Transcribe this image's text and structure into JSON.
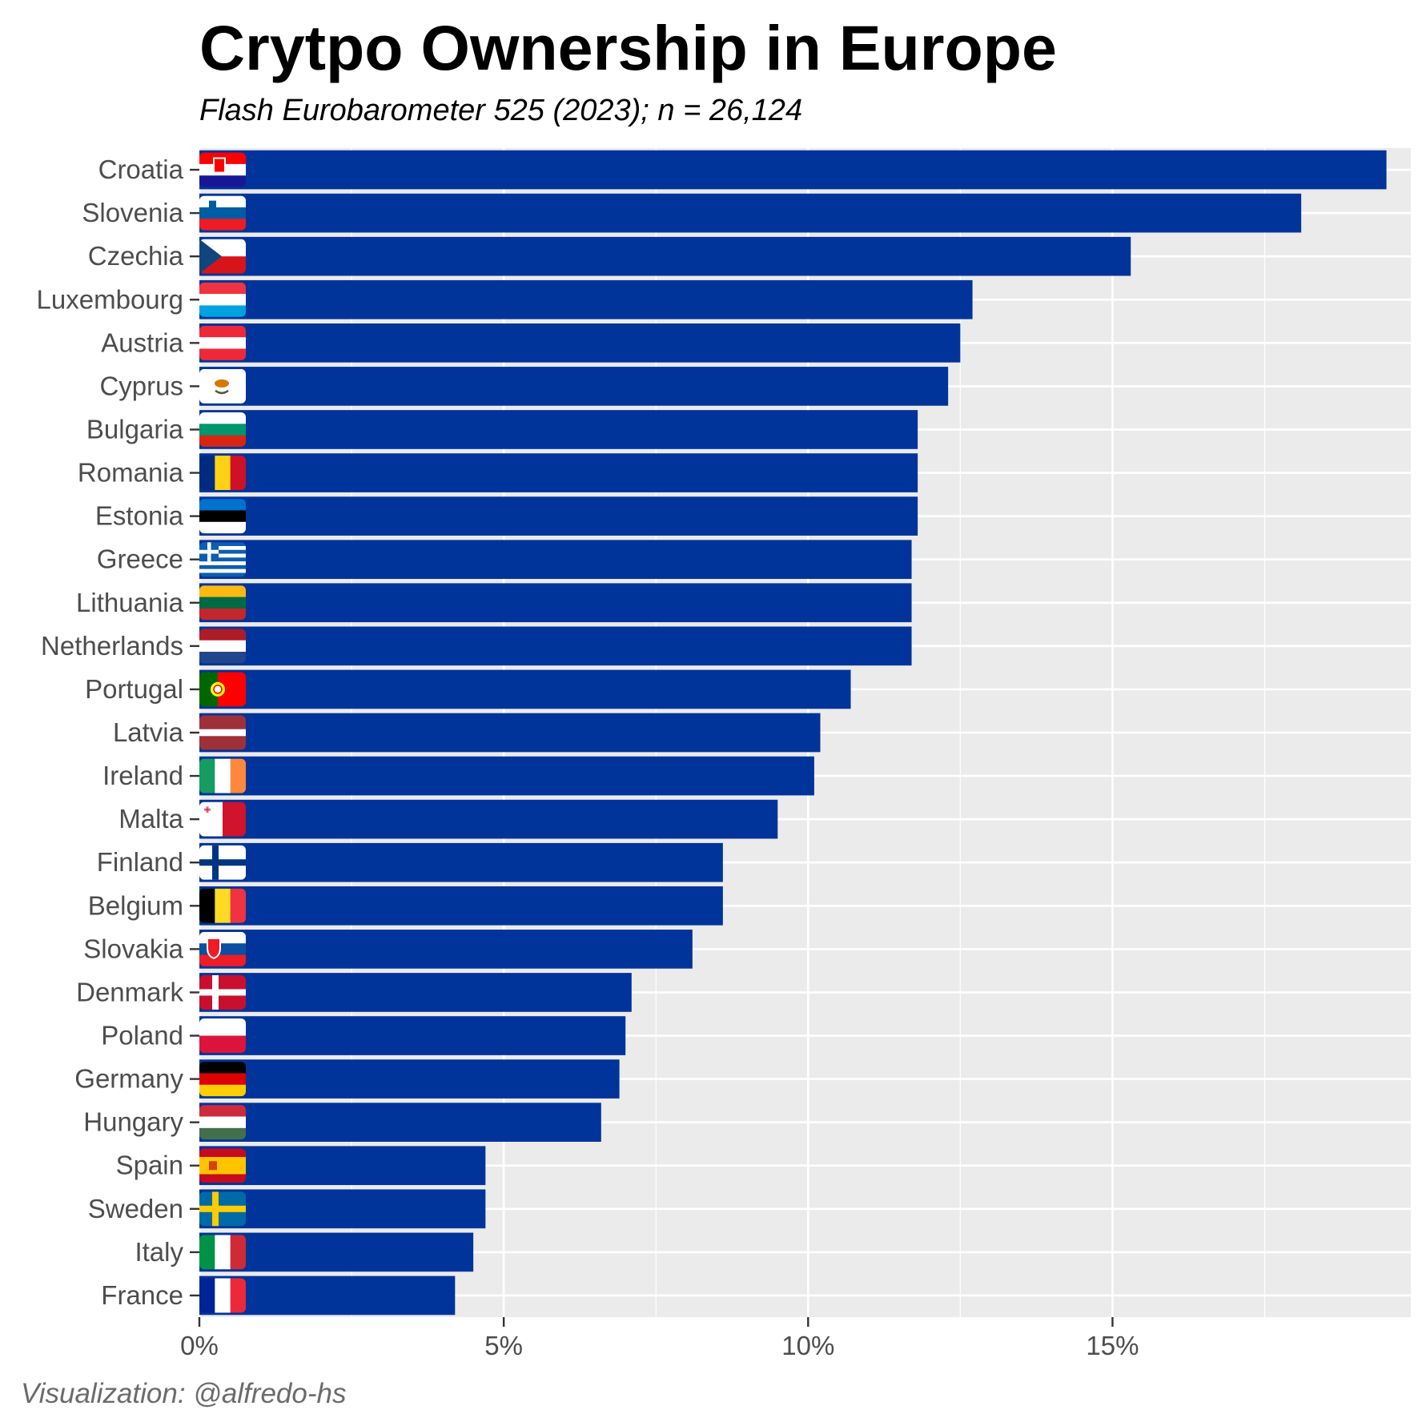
{
  "title": "Crytpo Ownership in Europe",
  "subtitle": "Flash Eurobarometer 525 (2023); n = 26,124",
  "caption": "Visualization: @alfredo-hs",
  "colors": {
    "bar": "#00349a",
    "panel": "#ebebeb",
    "grid": "#ffffff",
    "axis_text": "#4d4d4d"
  },
  "chart_data": {
    "type": "bar",
    "orientation": "horizontal",
    "title": "Crytpo Ownership in Europe",
    "subtitle": "Flash Eurobarometer 525 (2023); n = 26,124",
    "xlabel": "",
    "ylabel": "",
    "xlim": [
      0,
      19.9
    ],
    "xticks": [
      0,
      5,
      10,
      15
    ],
    "xtick_labels": [
      "0%",
      "5%",
      "10%",
      "15%"
    ],
    "grid": true,
    "legend": "none",
    "categories": [
      "Croatia",
      "Slovenia",
      "Czechia",
      "Luxembourg",
      "Austria",
      "Cyprus",
      "Bulgaria",
      "Romania",
      "Estonia",
      "Greece",
      "Lithuania",
      "Netherlands",
      "Portugal",
      "Latvia",
      "Ireland",
      "Malta",
      "Finland",
      "Belgium",
      "Slovakia",
      "Denmark",
      "Poland",
      "Germany",
      "Hungary",
      "Spain",
      "Sweden",
      "Italy",
      "France"
    ],
    "values": [
      19.5,
      18.1,
      15.3,
      12.7,
      12.5,
      12.3,
      11.8,
      11.8,
      11.8,
      11.7,
      11.7,
      11.7,
      10.7,
      10.2,
      10.1,
      9.5,
      8.6,
      8.6,
      8.1,
      7.1,
      7.0,
      6.9,
      6.6,
      4.7,
      4.7,
      4.5,
      4.2
    ],
    "flags": [
      "croatia-flag-icon",
      "slovenia-flag-icon",
      "czechia-flag-icon",
      "luxembourg-flag-icon",
      "austria-flag-icon",
      "cyprus-flag-icon",
      "bulgaria-flag-icon",
      "romania-flag-icon",
      "estonia-flag-icon",
      "greece-flag-icon",
      "lithuania-flag-icon",
      "netherlands-flag-icon",
      "portugal-flag-icon",
      "latvia-flag-icon",
      "ireland-flag-icon",
      "malta-flag-icon",
      "finland-flag-icon",
      "belgium-flag-icon",
      "slovakia-flag-icon",
      "denmark-flag-icon",
      "poland-flag-icon",
      "germany-flag-icon",
      "hungary-flag-icon",
      "spain-flag-icon",
      "sweden-flag-icon",
      "italy-flag-icon",
      "france-flag-icon"
    ]
  }
}
